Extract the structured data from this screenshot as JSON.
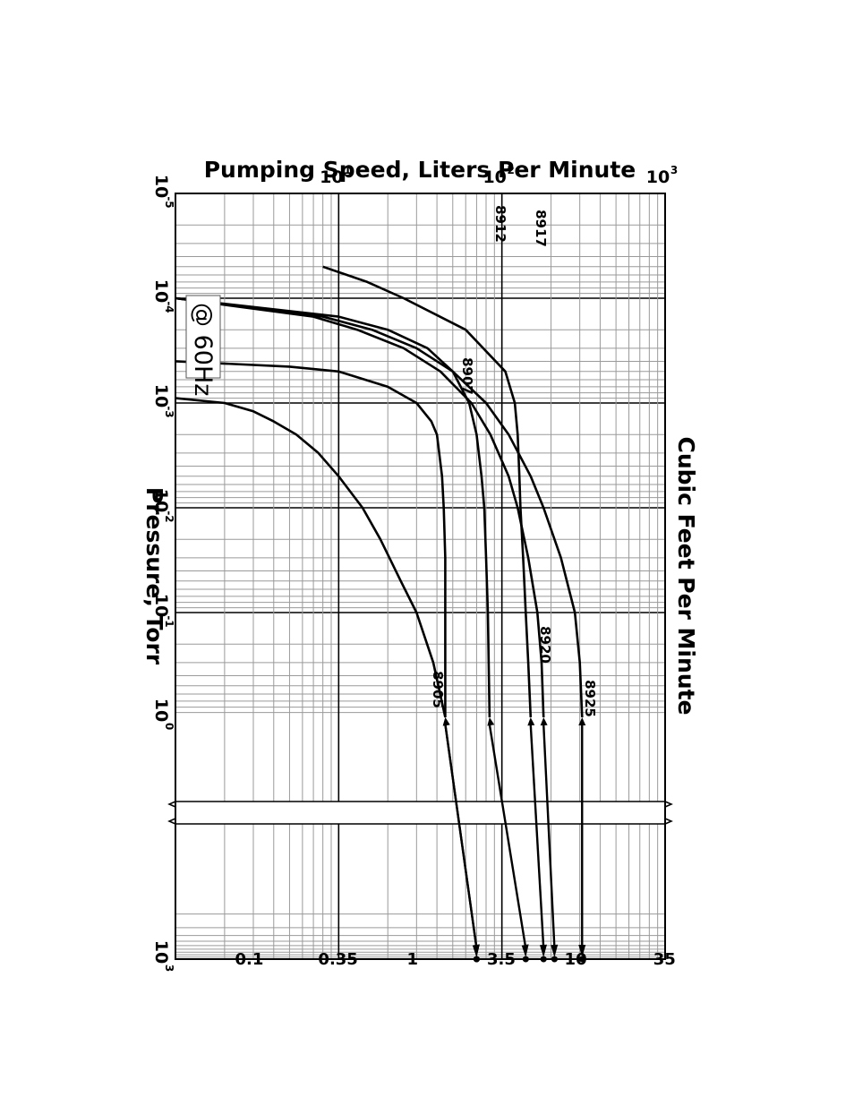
{
  "chart_data": {
    "type": "line",
    "x_axis": {
      "label": "Pressure, Torr",
      "scale": "log",
      "range": [
        1e-05,
        1000
      ],
      "break_between": [
        1,
        1000
      ],
      "ticks": [
        {
          "base": "10",
          "exp": "-5",
          "value": 1e-05
        },
        {
          "base": "10",
          "exp": "-4",
          "value": 0.0001
        },
        {
          "base": "10",
          "exp": "-3",
          "value": 0.001
        },
        {
          "base": "10",
          "exp": "-2",
          "value": 0.01
        },
        {
          "base": "10",
          "exp": "-1",
          "value": 0.1
        },
        {
          "base": "10",
          "exp": "0",
          "value": 1
        },
        {
          "base": "10",
          "exp": "3",
          "value": 1000
        }
      ]
    },
    "y_axis": {
      "label": "Pumping Speed, Liters Per Minute",
      "scale": "log",
      "range": [
        1,
        1000
      ],
      "ticks": [
        {
          "base": "10",
          "exp": "3",
          "value": 1000
        },
        {
          "base": "10",
          "exp": "2",
          "value": 100
        },
        {
          "base": "10",
          "exp": "1",
          "value": 10
        }
      ]
    },
    "secondary_axis": {
      "label": "Cubic Feet Per Minute",
      "ticks": [
        "35",
        "10",
        "3.5",
        "1",
        "0.35",
        "0.1"
      ]
    },
    "annotation": "@ 60Hz",
    "grid": true,
    "series": [
      {
        "name": "8925",
        "x": [
          0.0001,
          0.00015,
          0.0002,
          0.0003,
          0.0005,
          0.001,
          0.002,
          0.005,
          0.01,
          0.03,
          0.1,
          0.3,
          1,
          1000
        ],
        "y": [
          1,
          8,
          16,
          30,
          50,
          80,
          110,
          150,
          180,
          230,
          280,
          300,
          310,
          310
        ]
      },
      {
        "name": "8920",
        "x": [
          0.0001,
          0.00015,
          0.0002,
          0.0003,
          0.0005,
          0.001,
          0.002,
          0.005,
          0.01,
          0.03,
          0.1,
          0.3,
          1,
          1000
        ],
        "y": [
          1,
          7,
          13,
          25,
          42,
          65,
          85,
          110,
          125,
          145,
          165,
          175,
          180,
          210
        ]
      },
      {
        "name": "8917",
        "x": [
          5e-05,
          7e-05,
          0.0001,
          0.0002,
          0.0005,
          0.001,
          0.002,
          0.005,
          0.01,
          0.03,
          0.1,
          0.3,
          1,
          1000
        ],
        "y": [
          8,
          15,
          25,
          60,
          105,
          120,
          125,
          128,
          130,
          135,
          140,
          145,
          150,
          180
        ]
      },
      {
        "name": "8912",
        "x": [
          0.0001,
          0.00015,
          0.0002,
          0.0003,
          0.0005,
          0.001,
          0.002,
          0.005,
          0.01,
          0.03,
          0.1,
          0.3,
          1,
          1000
        ],
        "y": [
          1,
          10,
          20,
          35,
          50,
          63,
          70,
          75,
          78,
          80,
          82,
          83,
          84,
          140
        ]
      },
      {
        "name": "8907",
        "x": [
          0.0004,
          0.00045,
          0.0005,
          0.0007,
          0.001,
          0.0015,
          0.002,
          0.005,
          0.01,
          0.03,
          0.1,
          0.3,
          1,
          1000
        ],
        "y": [
          1,
          5,
          10,
          20,
          30,
          37,
          40,
          43,
          44,
          45,
          45,
          45,
          45,
          70
        ]
      },
      {
        "name": "8905",
        "x": [
          0.0009,
          0.001,
          0.0012,
          0.0015,
          0.002,
          0.003,
          0.005,
          0.01,
          0.02,
          0.05,
          0.1,
          0.3,
          1,
          1000
        ],
        "y": [
          1,
          2,
          3,
          4,
          5.5,
          7.5,
          10,
          14,
          18,
          24,
          30,
          38,
          45,
          70
        ]
      }
    ]
  }
}
